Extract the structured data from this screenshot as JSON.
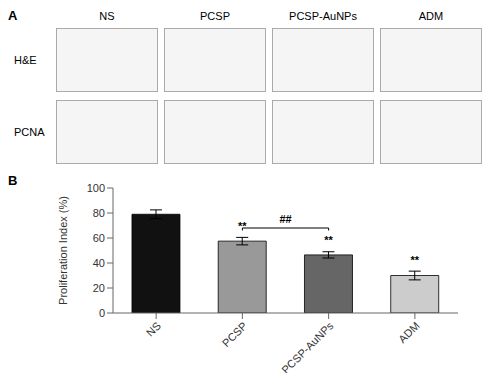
{
  "chart_data": {
    "type": "bar",
    "categories": [
      "NS",
      "PCSP",
      "PCSP-AuNPs",
      "ADM"
    ],
    "values": [
      79.0,
      57.5,
      46.5,
      30.0
    ],
    "errors": [
      3.5,
      3.0,
      2.5,
      3.5
    ],
    "colors": [
      "#111111",
      "#999999",
      "#666666",
      "#cccccc"
    ],
    "ylabel": "Proliferation Index (%)",
    "ylim": [
      0,
      100
    ],
    "yticks": [
      0,
      20,
      40,
      60,
      80,
      100
    ],
    "grid": false,
    "annotations": [
      {
        "text": "**",
        "category": "PCSP"
      },
      {
        "text": "**",
        "category": "PCSP-AuNPs"
      },
      {
        "text": "**",
        "category": "ADM"
      },
      {
        "text": "##",
        "from": "PCSP",
        "to": "PCSP-AuNPs",
        "y": 68
      }
    ],
    "panel_labels": [
      "A",
      "B"
    ],
    "image_panel": {
      "columns": [
        "NS",
        "PCSP",
        "PCSP-AuNPs",
        "ADM"
      ],
      "rows": [
        "H&E",
        "PCNA"
      ]
    }
  }
}
